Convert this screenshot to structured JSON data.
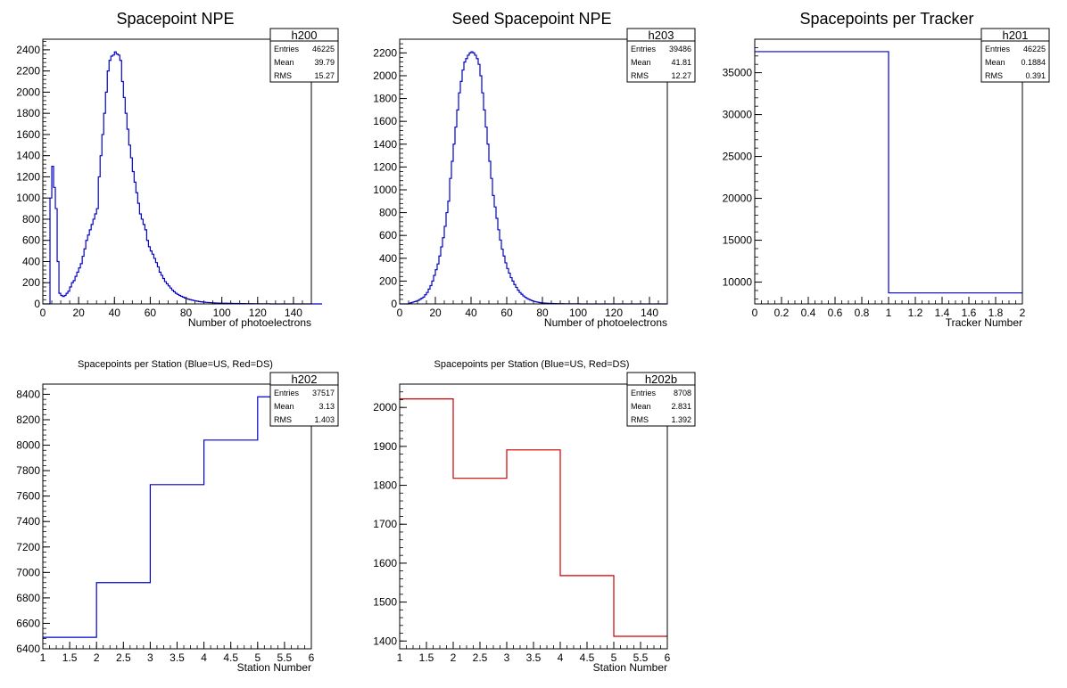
{
  "chart_data": [
    {
      "id": "npe",
      "type": "bar",
      "style": "step",
      "color": "#0000cc",
      "title": "Spacepoint NPE",
      "xlabel": "Number of photoelectrons",
      "ylabel": "",
      "xlim": [
        0,
        150
      ],
      "ylim": [
        0,
        2500
      ],
      "xticks": [
        0,
        20,
        40,
        60,
        80,
        100,
        120,
        140
      ],
      "yticks": [
        0,
        200,
        400,
        600,
        800,
        1000,
        1200,
        1400,
        1600,
        1800,
        2000,
        2200,
        2400
      ],
      "stats": {
        "name": "h200",
        "entries": "46225",
        "mean": "39.79",
        "rms": "15.27"
      },
      "stats_labels": {
        "entries": "Entries",
        "mean": "Mean",
        "rms": "RMS"
      },
      "bin_width": 1,
      "bin_start": 0,
      "values": [
        0,
        0,
        0,
        0,
        1000,
        1300,
        1100,
        900,
        400,
        100,
        80,
        70,
        80,
        100,
        120,
        160,
        200,
        220,
        260,
        300,
        340,
        380,
        450,
        520,
        600,
        650,
        700,
        750,
        800,
        850,
        900,
        1200,
        1400,
        1600,
        1800,
        2000,
        2200,
        2300,
        2340,
        2350,
        2380,
        2360,
        2350,
        2300,
        2100,
        1950,
        1800,
        1650,
        1500,
        1380,
        1250,
        1150,
        1050,
        950,
        850,
        800,
        750,
        700,
        600,
        540,
        500,
        470,
        430,
        390,
        350,
        300,
        270,
        240,
        210,
        190,
        170,
        150,
        130,
        115,
        100,
        90,
        80,
        72,
        64,
        56,
        50,
        44,
        40,
        36,
        32,
        28,
        25,
        22,
        20,
        18,
        16,
        14,
        13,
        12,
        11,
        10,
        9,
        8,
        8,
        7,
        7,
        6,
        6,
        5,
        5,
        5,
        4,
        4,
        4,
        3,
        3,
        3,
        3,
        2,
        2,
        2,
        2,
        2,
        1,
        1,
        1,
        1,
        1,
        1,
        1,
        1,
        1,
        0,
        0,
        0,
        0,
        0,
        0,
        0,
        0,
        0,
        0,
        0,
        0,
        0,
        0,
        0,
        0,
        0,
        0,
        0,
        0,
        0,
        0,
        0,
        0,
        0,
        0,
        0,
        0,
        0
      ]
    },
    {
      "id": "seed",
      "type": "bar",
      "style": "step",
      "color": "#0000cc",
      "title": "Seed Spacepoint NPE",
      "xlabel": "Number of photoelectrons",
      "ylabel": "",
      "xlim": [
        0,
        150
      ],
      "ylim": [
        0,
        2320
      ],
      "xticks": [
        0,
        20,
        40,
        60,
        80,
        100,
        120,
        140
      ],
      "yticks": [
        0,
        200,
        400,
        600,
        800,
        1000,
        1200,
        1400,
        1600,
        1800,
        2000,
        2200
      ],
      "stats": {
        "name": "h203",
        "entries": "39486",
        "mean": "41.81",
        "rms": "12.27"
      },
      "stats_labels": {
        "entries": "Entries",
        "mean": "Mean",
        "rms": "RMS"
      },
      "bin_width": 1,
      "bin_start": 0,
      "values": [
        0,
        0,
        0,
        0,
        0,
        5,
        10,
        15,
        20,
        25,
        30,
        40,
        50,
        60,
        80,
        100,
        130,
        160,
        200,
        250,
        300,
        350,
        420,
        500,
        580,
        680,
        800,
        900,
        1100,
        1250,
        1400,
        1550,
        1700,
        1850,
        1950,
        2050,
        2120,
        2150,
        2180,
        2200,
        2210,
        2200,
        2180,
        2150,
        2100,
        2000,
        1850,
        1700,
        1550,
        1400,
        1250,
        1100,
        950,
        850,
        750,
        650,
        560,
        480,
        420,
        360,
        310,
        270,
        230,
        200,
        170,
        145,
        120,
        100,
        85,
        70,
        58,
        48,
        40,
        33,
        27,
        22,
        18,
        15,
        12,
        10,
        8,
        7,
        6,
        5,
        4,
        4,
        3,
        3,
        2,
        2,
        2,
        2,
        1,
        1,
        1,
        1,
        1,
        1,
        1,
        1,
        1,
        0,
        0,
        0,
        0,
        0,
        0,
        0,
        0,
        0,
        0,
        0,
        0,
        0,
        0,
        0,
        0,
        0,
        0,
        0,
        0,
        0,
        0,
        0,
        0,
        0,
        0,
        0,
        0,
        0,
        0,
        0,
        0,
        0,
        0,
        0,
        0,
        0,
        0,
        0,
        0,
        0,
        0,
        0,
        0,
        0,
        0,
        0,
        0,
        0
      ]
    },
    {
      "id": "tracker",
      "type": "bar",
      "style": "step",
      "color": "#0000cc",
      "title": "Spacepoints per Tracker",
      "xlabel": "Tracker Number",
      "ylabel": "",
      "xlim": [
        0,
        2
      ],
      "ylim": [
        7400,
        39000
      ],
      "xticks": [
        0,
        0.2,
        0.4,
        0.6,
        0.8,
        1,
        1.2,
        1.4,
        1.6,
        1.8,
        2
      ],
      "yticks": [
        10000,
        15000,
        20000,
        25000,
        30000,
        35000
      ],
      "stats": {
        "name": "h201",
        "entries": "46225",
        "mean": "0.1884",
        "rms": "0.391"
      },
      "stats_labels": {
        "entries": "Entries",
        "mean": "Mean",
        "rms": "RMS"
      },
      "bin_width": 1,
      "bin_start": 0,
      "values": [
        37517,
        8708
      ]
    },
    {
      "id": "stationUS",
      "type": "bar",
      "style": "step",
      "color": "#0000cc",
      "title": "Spacepoints per Station (Blue=US, Red=DS)",
      "xlabel": "Station Number",
      "ylabel": "",
      "xlim": [
        1,
        6
      ],
      "ylim": [
        6400,
        8480
      ],
      "xticks": [
        1,
        1.5,
        2,
        2.5,
        3,
        3.5,
        4,
        4.5,
        5,
        5.5,
        6
      ],
      "yticks": [
        6400,
        6600,
        6800,
        7000,
        7200,
        7400,
        7600,
        7800,
        8000,
        8200,
        8400
      ],
      "stats": {
        "name": "h202",
        "entries": "37517",
        "mean": "3.13",
        "rms": "1.403"
      },
      "stats_labels": {
        "entries": "Entries",
        "mean": "Mean",
        "rms": "RMS"
      },
      "bin_width": 1,
      "bin_start": 1,
      "values": [
        6490,
        6920,
        7690,
        8040,
        8380
      ]
    },
    {
      "id": "stationDS",
      "type": "bar",
      "style": "step",
      "color": "#cc0000",
      "title": "Spacepoints per Station (Blue=US, Red=DS)",
      "xlabel": "Station Number",
      "ylabel": "",
      "xlim": [
        1,
        6
      ],
      "ylim": [
        1380,
        2060
      ],
      "xticks": [
        1,
        1.5,
        2,
        2.5,
        3,
        3.5,
        4,
        4.5,
        5,
        5.5,
        6
      ],
      "yticks": [
        1400,
        1500,
        1600,
        1700,
        1800,
        1900,
        2000
      ],
      "stats": {
        "name": "h202b",
        "entries": "8708",
        "mean": "2.831",
        "rms": "1.392"
      },
      "stats_labels": {
        "entries": "Entries",
        "mean": "Mean",
        "rms": "RMS"
      },
      "bin_width": 1,
      "bin_start": 1,
      "values": [
        2022,
        1818,
        1891,
        1568,
        1412
      ]
    }
  ]
}
